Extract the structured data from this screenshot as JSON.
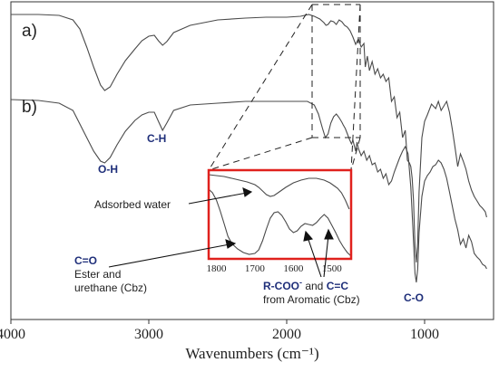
{
  "chart_data": {
    "type": "line",
    "xlabel": "Wavenumbers (cm⁻¹)",
    "x_reversed": true,
    "xlim": [
      4000,
      500
    ],
    "x_ticks": [
      4000,
      3000,
      2000,
      1000
    ],
    "series": [
      {
        "name": "a)",
        "points": [
          [
            4000,
            4
          ],
          [
            3800,
            4
          ],
          [
            3650,
            5
          ],
          [
            3550,
            10
          ],
          [
            3500,
            20
          ],
          [
            3450,
            40
          ],
          [
            3400,
            62
          ],
          [
            3350,
            82
          ],
          [
            3320,
            88
          ],
          [
            3280,
            84
          ],
          [
            3230,
            70
          ],
          [
            3170,
            55
          ],
          [
            3100,
            42
          ],
          [
            3050,
            33
          ],
          [
            3000,
            28
          ],
          [
            2960,
            27
          ],
          [
            2930,
            33
          ],
          [
            2900,
            38
          ],
          [
            2870,
            34
          ],
          [
            2820,
            24
          ],
          [
            2700,
            16
          ],
          [
            2500,
            10
          ],
          [
            2300,
            8
          ],
          [
            2150,
            7
          ],
          [
            2000,
            7
          ],
          [
            1900,
            6
          ],
          [
            1840,
            4
          ],
          [
            1800,
            6
          ],
          [
            1760,
            9
          ],
          [
            1730,
            13
          ],
          [
            1715,
            16
          ],
          [
            1700,
            15
          ],
          [
            1680,
            11
          ],
          [
            1660,
            12
          ],
          [
            1640,
            15
          ],
          [
            1620,
            10
          ],
          [
            1600,
            12
          ],
          [
            1580,
            16
          ],
          [
            1560,
            18
          ],
          [
            1540,
            22
          ],
          [
            1520,
            29
          ],
          [
            1500,
            37
          ],
          [
            1480,
            31
          ],
          [
            1460,
            40
          ],
          [
            1440,
            36
          ],
          [
            1430,
            62
          ],
          [
            1415,
            50
          ],
          [
            1400,
            66
          ],
          [
            1380,
            56
          ],
          [
            1360,
            70
          ],
          [
            1340,
            64
          ],
          [
            1320,
            74
          ],
          [
            1300,
            70
          ],
          [
            1280,
            78
          ],
          [
            1260,
            74
          ],
          [
            1240,
            100
          ],
          [
            1220,
            95
          ],
          [
            1200,
            118
          ],
          [
            1180,
            112
          ],
          [
            1160,
            140
          ],
          [
            1140,
            132
          ],
          [
            1125,
            165
          ],
          [
            1110,
            168
          ],
          [
            1100,
            172
          ],
          [
            1090,
            185
          ],
          [
            1080,
            210
          ],
          [
            1070,
            260
          ],
          [
            1060,
            278
          ],
          [
            1050,
            255
          ],
          [
            1040,
            200
          ],
          [
            1020,
            140
          ],
          [
            1000,
            122
          ],
          [
            980,
            115
          ],
          [
            950,
            103
          ],
          [
            920,
            108
          ],
          [
            900,
            100
          ],
          [
            880,
            110
          ],
          [
            860,
            105
          ],
          [
            840,
            100
          ],
          [
            820,
            112
          ],
          [
            800,
            130
          ],
          [
            780,
            150
          ],
          [
            760,
            172
          ],
          [
            740,
            158
          ],
          [
            720,
            166
          ],
          [
            700,
            175
          ],
          [
            680,
            188
          ],
          [
            660,
            198
          ],
          [
            640,
            205
          ],
          [
            620,
            210
          ],
          [
            600,
            215
          ],
          [
            580,
            218
          ],
          [
            560,
            222
          ],
          [
            550,
            228
          ]
        ]
      },
      {
        "name": "b)",
        "points": [
          [
            4000,
            98
          ],
          [
            3800,
            99
          ],
          [
            3650,
            102
          ],
          [
            3550,
            110
          ],
          [
            3500,
            125
          ],
          [
            3450,
            140
          ],
          [
            3400,
            155
          ],
          [
            3350,
            166
          ],
          [
            3320,
            168
          ],
          [
            3280,
            162
          ],
          [
            3230,
            148
          ],
          [
            3170,
            133
          ],
          [
            3100,
            121
          ],
          [
            3050,
            115
          ],
          [
            3000,
            112
          ],
          [
            2960,
            112
          ],
          [
            2930,
            122
          ],
          [
            2900,
            132
          ],
          [
            2870,
            124
          ],
          [
            2820,
            110
          ],
          [
            2700,
            104
          ],
          [
            2500,
            102
          ],
          [
            2300,
            100
          ],
          [
            2100,
            100
          ],
          [
            1950,
            100
          ],
          [
            1850,
            100
          ],
          [
            1800,
            104
          ],
          [
            1770,
            114
          ],
          [
            1740,
            130
          ],
          [
            1720,
            140
          ],
          [
            1700,
            136
          ],
          [
            1680,
            124
          ],
          [
            1660,
            117
          ],
          [
            1640,
            114
          ],
          [
            1620,
            118
          ],
          [
            1600,
            123
          ],
          [
            1590,
            126
          ],
          [
            1575,
            130
          ],
          [
            1560,
            136
          ],
          [
            1545,
            142
          ],
          [
            1530,
            147
          ],
          [
            1520,
            143
          ],
          [
            1510,
            149
          ],
          [
            1500,
            155
          ],
          [
            1490,
            145
          ],
          [
            1480,
            152
          ],
          [
            1460,
            160
          ],
          [
            1440,
            155
          ],
          [
            1420,
            165
          ],
          [
            1400,
            160
          ],
          [
            1380,
            170
          ],
          [
            1360,
            168
          ],
          [
            1340,
            178
          ],
          [
            1320,
            175
          ],
          [
            1300,
            185
          ],
          [
            1280,
            180
          ],
          [
            1260,
            192
          ],
          [
            1240,
            188
          ],
          [
            1220,
            178
          ],
          [
            1200,
            170
          ],
          [
            1180,
            162
          ],
          [
            1160,
            155
          ],
          [
            1140,
            150
          ],
          [
            1120,
            158
          ],
          [
            1100,
            195
          ],
          [
            1085,
            240
          ],
          [
            1070,
            290
          ],
          [
            1060,
            300
          ],
          [
            1050,
            285
          ],
          [
            1040,
            245
          ],
          [
            1020,
            205
          ],
          [
            1000,
            188
          ],
          [
            980,
            182
          ],
          [
            960,
            178
          ],
          [
            940,
            172
          ],
          [
            920,
            170
          ],
          [
            900,
            165
          ],
          [
            880,
            168
          ],
          [
            860,
            175
          ],
          [
            840,
            185
          ],
          [
            820,
            200
          ],
          [
            800,
            215
          ],
          [
            780,
            230
          ],
          [
            760,
            242
          ],
          [
            740,
            258
          ],
          [
            720,
            252
          ],
          [
            700,
            262
          ],
          [
            680,
            248
          ],
          [
            660,
            255
          ],
          [
            640,
            268
          ],
          [
            620,
            272
          ],
          [
            600,
            275
          ],
          [
            580,
            280
          ],
          [
            560,
            282
          ],
          [
            550,
            285
          ]
        ]
      }
    ],
    "inset": {
      "xlim": [
        1820,
        1450
      ],
      "x_ticks": [
        1800,
        1700,
        1600,
        1500
      ],
      "series": [
        {
          "points": [
            [
              1820,
              2
            ],
            [
              1800,
              3
            ],
            [
              1780,
              4
            ],
            [
              1760,
              6
            ],
            [
              1740,
              8
            ],
            [
              1720,
              10
            ],
            [
              1700,
              13
            ],
            [
              1690,
              16
            ],
            [
              1680,
              20
            ],
            [
              1670,
              24
            ],
            [
              1660,
              26
            ],
            [
              1650,
              25
            ],
            [
              1640,
              22
            ],
            [
              1620,
              16
            ],
            [
              1600,
              11
            ],
            [
              1580,
              8
            ],
            [
              1560,
              6
            ],
            [
              1540,
              6
            ],
            [
              1520,
              8
            ],
            [
              1505,
              11
            ],
            [
              1495,
              14
            ],
            [
              1485,
              17
            ],
            [
              1475,
              22
            ],
            [
              1465,
              30
            ],
            [
              1455,
              40
            ]
          ]
        },
        {
          "points": [
            [
              1820,
              18
            ],
            [
              1810,
              22
            ],
            [
              1800,
              30
            ],
            [
              1790,
              42
            ],
            [
              1780,
              56
            ],
            [
              1770,
              70
            ],
            [
              1760,
              78
            ],
            [
              1745,
              84
            ],
            [
              1730,
              88
            ],
            [
              1715,
              90
            ],
            [
              1700,
              89
            ],
            [
              1690,
              85
            ],
            [
              1680,
              75
            ],
            [
              1670,
              62
            ],
            [
              1660,
              50
            ],
            [
              1650,
              44
            ],
            [
              1640,
              43
            ],
            [
              1630,
              47
            ],
            [
              1620,
              54
            ],
            [
              1610,
              62
            ],
            [
              1600,
              66
            ],
            [
              1590,
              64
            ],
            [
              1580,
              59
            ],
            [
              1570,
              56
            ],
            [
              1560,
              57
            ],
            [
              1550,
              58
            ],
            [
              1540,
              55
            ],
            [
              1530,
              50
            ],
            [
              1520,
              46
            ],
            [
              1510,
              50
            ],
            [
              1500,
              58
            ],
            [
              1490,
              66
            ],
            [
              1480,
              75
            ],
            [
              1470,
              82
            ],
            [
              1460,
              88
            ],
            [
              1450,
              92
            ]
          ]
        }
      ]
    },
    "annotations": {
      "label_a": "a)",
      "label_b": "b)",
      "oh": "O-H",
      "ch": "C-H",
      "co": "C-O",
      "adsorbed_water": "Adsorbed water",
      "c_eq_o": "C=O",
      "ester_1": "Ester and",
      "ester_2": "urethane (Cbz)",
      "rcoo": "R-COO",
      "rcoo_sup": "-",
      "and_word": " and ",
      "cc": "C=C",
      "aromatic": "from Aromatic (Cbz)"
    },
    "colors": {
      "line": "#4a4a4a",
      "inset_border": "#e0211d",
      "label_blue": "#1f2f7a",
      "text": "#222222"
    }
  }
}
